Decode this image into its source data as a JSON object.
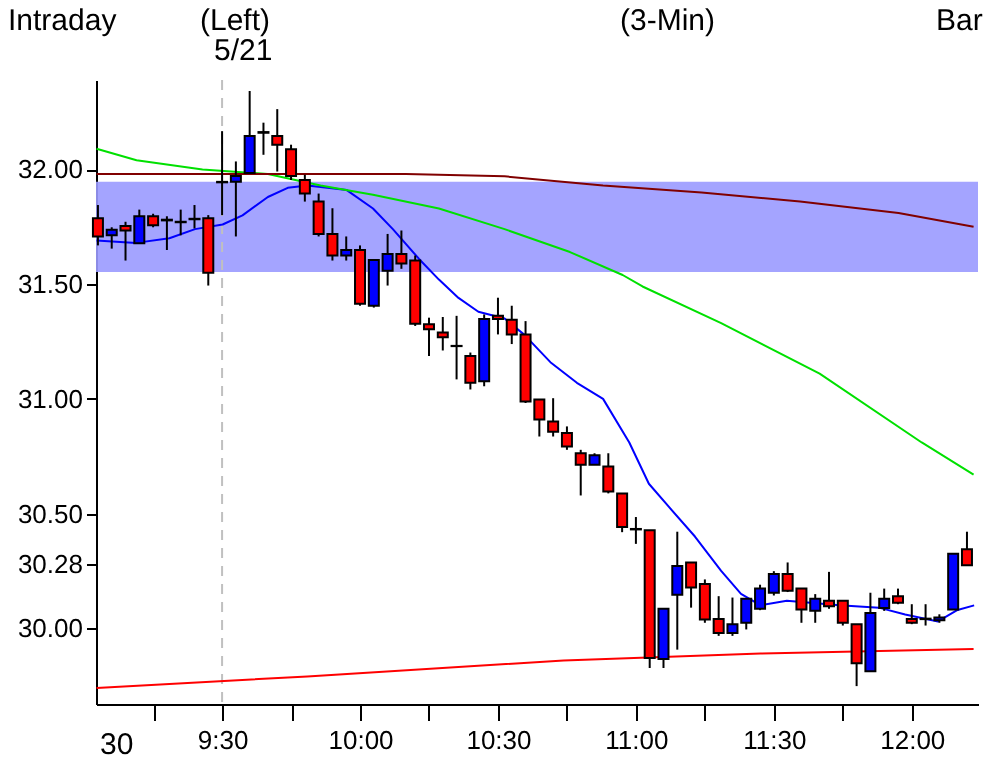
{
  "chart_data": {
    "type": "candlestick",
    "title": "Intraday",
    "annotations": [
      "(Left)",
      "5/21",
      "(3-Min)",
      "Bar",
      "30"
    ],
    "x": [
      9.05,
      9.1,
      9.15,
      9.2,
      9.25,
      9.3,
      9.35,
      9.4,
      9.45,
      9.5,
      9.55,
      9.6,
      9.65,
      9.7,
      9.75,
      9.8,
      9.85,
      9.9,
      9.95,
      10,
      10.05,
      10.1,
      10.15,
      10.2,
      10.25,
      10.3,
      10.35,
      10.4,
      10.45,
      10.5,
      10.55,
      10.6,
      10.65,
      10.7,
      10.75,
      10.8,
      10.85,
      10.9,
      10.95,
      11,
      11.05,
      11.1,
      11.15,
      11.2,
      11.25,
      11.3,
      11.35,
      11.4,
      11.45,
      11.5,
      11.55,
      11.6,
      11.65,
      11.7,
      11.75,
      11.8,
      11.85,
      11.9,
      11.95,
      12,
      12.05,
      12.1,
      12.15,
      12.2
    ],
    "ohlc": [
      [
        31.787,
        31.845,
        31.669,
        31.708
      ],
      [
        31.713,
        31.748,
        31.655,
        31.737
      ],
      [
        31.754,
        31.772,
        31.603,
        31.734
      ],
      [
        31.678,
        31.825,
        31.678,
        31.796
      ],
      [
        31.796,
        31.807,
        31.748,
        31.757
      ],
      [
        31.781,
        31.796,
        31.649,
        31.778
      ],
      [
        31.772,
        31.825,
        31.713,
        31.77
      ],
      [
        31.783,
        31.845,
        31.743,
        31.785
      ],
      [
        31.787,
        31.801,
        31.494,
        31.55
      ],
      [
        31.946,
        32.167,
        31.801,
        31.944
      ],
      [
        31.947,
        32.035,
        31.708,
        31.971
      ],
      [
        31.985,
        32.342,
        31.985,
        32.146
      ],
      [
        32.163,
        32.204,
        32.064,
        32.16
      ],
      [
        32.146,
        32.263,
        31.991,
        32.108
      ],
      [
        32.088,
        32.108,
        31.954,
        31.971
      ],
      [
        31.954,
        31.977,
        31.86,
        31.895
      ],
      [
        31.86,
        31.895,
        31.708,
        31.719
      ],
      [
        31.719,
        31.831,
        31.603,
        31.625
      ],
      [
        31.625,
        31.708,
        31.603,
        31.649
      ],
      [
        31.649,
        31.669,
        31.406,
        31.415
      ],
      [
        31.406,
        31.605,
        31.398,
        31.605
      ],
      [
        31.559,
        31.719,
        31.494,
        31.632
      ],
      [
        31.632,
        31.734,
        31.567,
        31.59
      ],
      [
        31.603,
        31.625,
        31.318,
        31.327
      ],
      [
        31.325,
        31.354,
        31.187,
        31.304
      ],
      [
        31.289,
        31.357,
        31.211,
        31.269
      ],
      [
        31.231,
        31.362,
        31.085,
        31.23
      ],
      [
        31.187,
        31.202,
        31.041,
        31.07
      ],
      [
        31.077,
        31.368,
        31.055,
        31.348
      ],
      [
        31.362,
        31.441,
        31.281,
        31.348
      ],
      [
        31.345,
        31.406,
        31.239,
        31.281
      ],
      [
        31.281,
        31.339,
        30.982,
        30.989
      ],
      [
        30.997,
        30.997,
        30.836,
        30.91
      ],
      [
        30.901,
        31.003,
        30.836,
        30.857
      ],
      [
        30.851,
        30.88,
        30.778,
        30.792
      ],
      [
        30.763,
        30.778,
        30.579,
        30.713
      ],
      [
        30.713,
        30.763,
        30.713,
        30.754
      ],
      [
        30.705,
        30.763,
        30.588,
        30.596
      ],
      [
        30.588,
        30.588,
        30.419,
        30.441
      ],
      [
        30.433,
        30.485,
        30.368,
        30.431
      ],
      [
        30.427,
        30.427,
        29.827,
        29.871
      ],
      [
        29.866,
        30.085,
        29.827,
        30.085
      ],
      [
        30.146,
        30.421,
        29.907,
        30.272
      ],
      [
        30.287,
        30.287,
        30.09,
        30.178
      ],
      [
        30.193,
        30.213,
        30.024,
        30.038
      ],
      [
        30.041,
        30.14,
        29.967,
        29.98
      ],
      [
        29.98,
        30.134,
        29.967,
        30.018
      ],
      [
        30.024,
        30.129,
        29.995,
        30.129
      ],
      [
        30.085,
        30.19,
        30.079,
        30.173
      ],
      [
        30.155,
        30.249,
        30.143,
        30.237
      ],
      [
        30.237,
        30.287,
        30.158,
        30.164
      ],
      [
        30.173,
        30.173,
        30.024,
        30.082
      ],
      [
        30.077,
        30.149,
        30.024,
        30.129
      ],
      [
        30.12,
        30.246,
        30.085,
        30.096
      ],
      [
        30.12,
        30.12,
        30.012,
        30.024
      ],
      [
        30.018,
        30.018,
        29.748,
        29.848
      ],
      [
        29.813,
        30.155,
        29.813,
        30.067
      ],
      [
        30.088,
        30.173,
        30.076,
        30.129
      ],
      [
        30.14,
        30.173,
        30.105,
        30.111
      ],
      [
        30.041,
        30.105,
        30.018,
        30.024
      ],
      [
        30.042,
        30.105,
        30.012,
        30.04
      ],
      [
        30.035,
        30.061,
        30.024,
        30.047
      ],
      [
        30.082,
        30.325,
        30.082,
        30.325
      ],
      [
        30.345,
        30.421,
        30.275,
        30.275
      ]
    ],
    "colors": [
      "#ff0000",
      "#0000ff",
      "#ff0000",
      "#0000ff",
      "#ff0000",
      "#000000",
      "#000000",
      "#000000",
      "#ff0000",
      "#000000",
      "#0000ff",
      "#0000ff",
      "#000000",
      "#ff0000",
      "#ff0000",
      "#ff0000",
      "#ff0000",
      "#ff0000",
      "#0000ff",
      "#ff0000",
      "#0000ff",
      "#0000ff",
      "#ff0000",
      "#ff0000",
      "#ff0000",
      "#ff0000",
      "#000000",
      "#ff0000",
      "#0000ff",
      "#ff0000",
      "#ff0000",
      "#ff0000",
      "#ff0000",
      "#ff0000",
      "#ff0000",
      "#ff0000",
      "#0000ff",
      "#ff0000",
      "#ff0000",
      "#000000",
      "#ff0000",
      "#0000ff",
      "#0000ff",
      "#ff0000",
      "#ff0000",
      "#ff0000",
      "#0000ff",
      "#0000ff",
      "#0000ff",
      "#0000ff",
      "#ff0000",
      "#ff0000",
      "#0000ff",
      "#ff0000",
      "#ff0000",
      "#ff0000",
      "#0000ff",
      "#0000ff",
      "#ff0000",
      "#ff0000",
      "#000000",
      "#0000ff",
      "#0000ff",
      "#ff0000"
    ],
    "series": [
      {
        "type": "line",
        "color": "#0000ff",
        "x": [
          9.045,
          9.188,
          9.309,
          9.402,
          9.502,
          9.574,
          9.666,
          9.738,
          9.809,
          9.881,
          9.952,
          10.047,
          10.119,
          10.214,
          10.286,
          10.357,
          10.429,
          10.524,
          10.595,
          10.69,
          10.786,
          10.881,
          10.976,
          11.047,
          11.119,
          11.214,
          11.309,
          11.381,
          11.452,
          11.547,
          11.643,
          11.738,
          11.881,
          11.976,
          12.095,
          12.166,
          12.226
        ],
        "values": [
          31.69,
          31.68,
          31.7,
          31.74,
          31.76,
          31.8,
          31.88,
          31.92,
          31.93,
          31.92,
          31.91,
          31.83,
          31.74,
          31.61,
          31.52,
          31.44,
          31.38,
          31.35,
          31.28,
          31.16,
          31.07,
          31.0,
          30.81,
          30.63,
          30.53,
          30.4,
          30.25,
          30.15,
          30.1,
          30.12,
          30.11,
          30.1,
          30.09,
          30.06,
          30.03,
          30.08,
          30.1
        ]
      },
      {
        "type": "line",
        "color": "#00e000",
        "x": [
          9.045,
          9.19,
          9.429,
          9.666,
          9.857,
          10.047,
          10.286,
          10.524,
          10.761,
          10.952,
          11.024,
          11.309,
          11.666,
          12.036,
          12.224
        ],
        "values": [
          32.09,
          32.04,
          32.0,
          31.98,
          31.93,
          31.89,
          31.83,
          31.74,
          31.64,
          31.54,
          31.49,
          31.33,
          31.11,
          30.81,
          30.67
        ]
      },
      {
        "type": "line",
        "color": "#800000",
        "x": [
          9.045,
          10.166,
          10.524,
          10.881,
          11.238,
          11.595,
          11.952,
          12.224
        ],
        "values": [
          31.98,
          31.98,
          31.97,
          31.93,
          31.9,
          31.86,
          31.81,
          31.75
        ]
      },
      {
        "type": "line",
        "color": "#ff0000",
        "x": [
          9.045,
          9.809,
          10.738,
          11.452,
          12.224
        ],
        "values": [
          29.74,
          29.79,
          29.86,
          29.89,
          29.91
        ]
      }
    ],
    "bands": [
      {
        "axis": "y",
        "from": 31.553,
        "to": 31.947,
        "color": "#9a9aff"
      }
    ],
    "ref_lines": [
      {
        "axis": "x",
        "value": 9.5,
        "color": "#c0c0c0",
        "line_style": "dashed"
      }
    ],
    "xlim": [
      9.043,
      12.24
    ],
    "xticks": [
      {
        "value": 9.25,
        "label": null
      },
      {
        "value": 9.5,
        "label": "9:30"
      },
      {
        "value": 9.75,
        "label": null
      },
      {
        "value": 10,
        "label": "10:00"
      },
      {
        "value": 10.25,
        "label": null
      },
      {
        "value": 10.5,
        "label": "10:30"
      },
      {
        "value": 10.75,
        "label": null
      },
      {
        "value": 11,
        "label": "11:00"
      },
      {
        "value": 11.25,
        "label": null
      },
      {
        "value": 11.5,
        "label": "11:30"
      },
      {
        "value": 11.75,
        "label": null
      },
      {
        "value": 12,
        "label": "12:00"
      }
    ],
    "ylim": [
      29.67,
      32.39
    ],
    "yticks": [
      {
        "value": 30,
        "label": "30.00"
      },
      {
        "value": 30.28,
        "label": "30.28"
      },
      {
        "value": 30.5,
        "label": "30.50"
      },
      {
        "value": 31,
        "label": "31.00"
      },
      {
        "value": 31.5,
        "label": "31.50"
      },
      {
        "value": 32,
        "label": "32.00"
      }
    ]
  }
}
